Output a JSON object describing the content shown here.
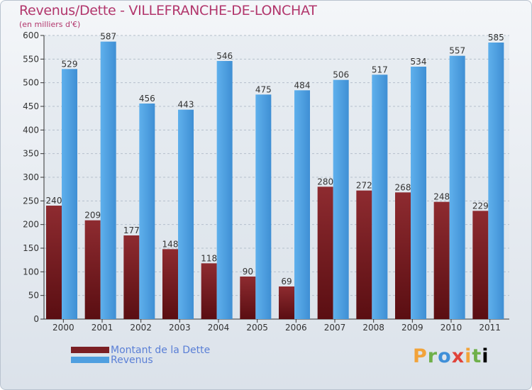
{
  "chart_data": {
    "type": "bar",
    "title": "Revenus/Dette - VILLEFRANCHE-DE-LONCHAT",
    "subtitle": "(en milliers d'€)",
    "categories": [
      "2000",
      "2001",
      "2002",
      "2003",
      "2004",
      "2005",
      "2006",
      "2007",
      "2008",
      "2009",
      "2010",
      "2011"
    ],
    "series": [
      {
        "name": "Montant de la Dette",
        "values": [
          240,
          209,
          177,
          148,
          118,
          90,
          69,
          280,
          272,
          268,
          248,
          229
        ],
        "color": "#7b1f24"
      },
      {
        "name": "Revenus",
        "values": [
          529,
          587,
          456,
          443,
          546,
          475,
          484,
          506,
          517,
          534,
          557,
          585
        ],
        "color": "#4f9fe0"
      }
    ],
    "ylim": [
      0,
      600
    ],
    "yticks": [
      0,
      50,
      100,
      150,
      200,
      250,
      300,
      350,
      400,
      450,
      500,
      550,
      600
    ],
    "grid": true,
    "legend_position": "bottom-left"
  },
  "brand": {
    "letters": [
      "P",
      "r",
      "o",
      "x",
      "i",
      "t",
      "i"
    ]
  }
}
